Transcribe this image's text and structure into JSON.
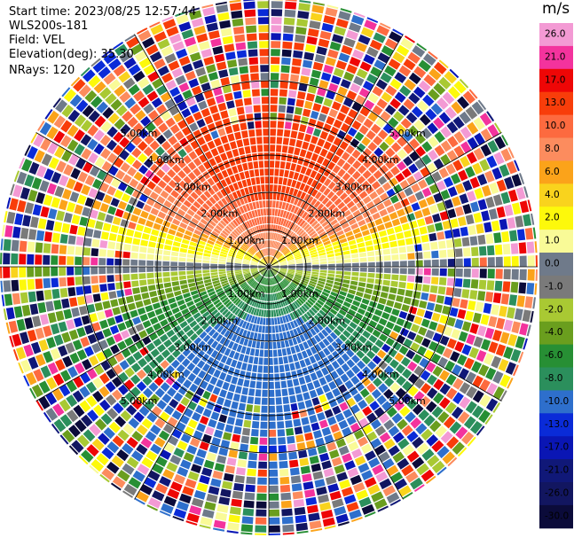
{
  "header": {
    "start_time": "Start time: 2023/08/25 12:57:44",
    "instrument": "WLS200s-181",
    "field": "Field: VEL",
    "elevation": "Elevation(deg): 35.30",
    "nrays": "NRays: 120"
  },
  "colorbar": {
    "units": "m/s",
    "bins": [
      {
        "color": "#F39AD4",
        "label": "26.0"
      },
      {
        "color": "#F3339D",
        "label": "21.0"
      },
      {
        "color": "#EE0606",
        "label": "17.0"
      },
      {
        "color": "#F83D0A",
        "label": "13.0"
      },
      {
        "color": "#FD6A3F",
        "label": "10.0"
      },
      {
        "color": "#FC8C5E",
        "label": "8.0"
      },
      {
        "color": "#FBA31A",
        "label": "6.0"
      },
      {
        "color": "#F9D31D",
        "label": "4.0"
      },
      {
        "color": "#FDF90B",
        "label": "2.0"
      },
      {
        "color": "#F9FA97",
        "label": "1.0"
      },
      {
        "color": "#6F7A8A",
        "label": "0.0"
      },
      {
        "color": "#7A7A7A",
        "label": "-1.0"
      },
      {
        "color": "#A9C933",
        "label": "-2.0"
      },
      {
        "color": "#6A9E1E",
        "label": "-4.0"
      },
      {
        "color": "#278F34",
        "label": "-6.0"
      },
      {
        "color": "#2B8F5C",
        "label": "-8.0"
      },
      {
        "color": "#2E6FCC",
        "label": "-10.0"
      },
      {
        "color": "#0A2BD8",
        "label": "-13.0"
      },
      {
        "color": "#0A16B4",
        "label": "-17.0"
      },
      {
        "color": "#101878",
        "label": "-21.0"
      },
      {
        "color": "#121660",
        "label": "-26.0"
      },
      {
        "color": "#0B0B3A",
        "label": "-30.0"
      }
    ]
  },
  "range_rings": [
    {
      "km": 1,
      "label": "1.00km"
    },
    {
      "km": 2,
      "label": "2.00km"
    },
    {
      "km": 3,
      "label": "3.00km"
    },
    {
      "km": 4,
      "label": "4.00km"
    },
    {
      "km": 5,
      "label": "5.00km"
    }
  ],
  "ppi": {
    "nrays": 120,
    "max_range_km": 7.2
  }
}
